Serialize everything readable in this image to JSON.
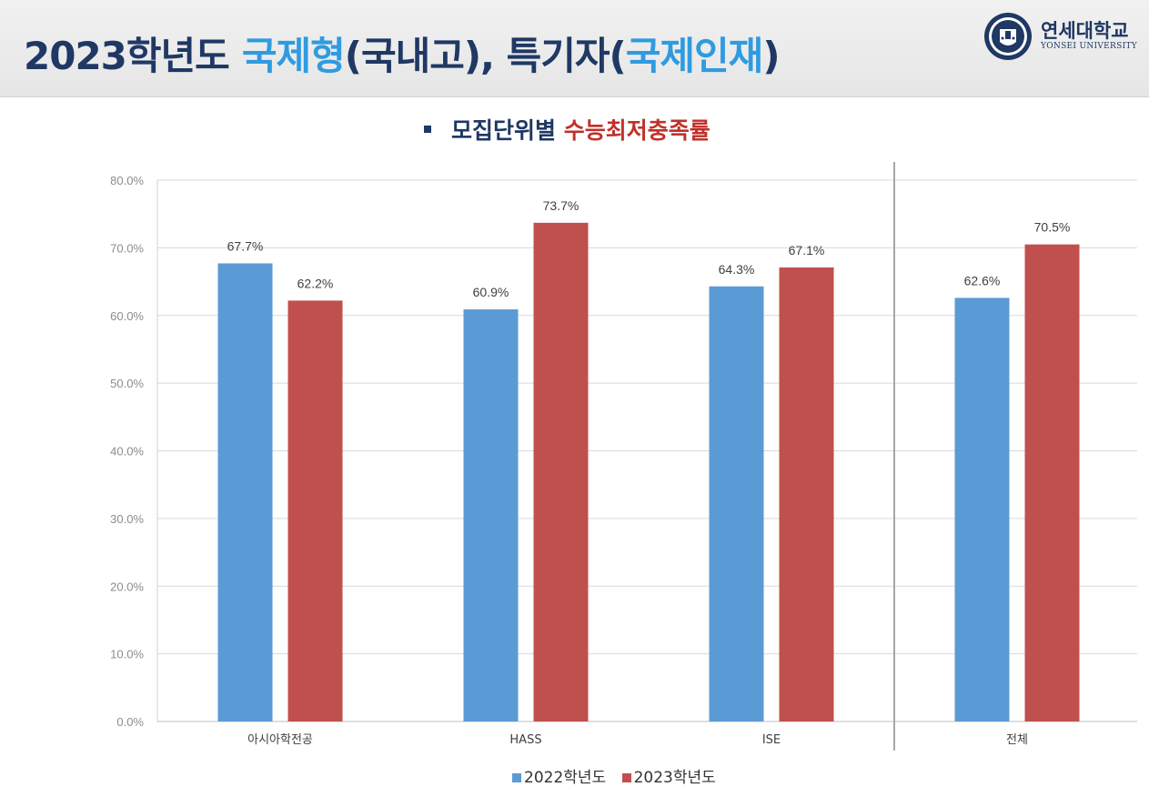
{
  "header": {
    "title_main": "2023학년도",
    "title_accent": "국제형",
    "title_part2": "(국내고), 특기자(",
    "title_accent2": "국제인재",
    "title_part3": ")",
    "logo_ko": "연세대학교",
    "logo_en": "YONSEI UNIVERSITY"
  },
  "subtitle": {
    "prefix": "모집단위별",
    "highlight": "수능최저충족률"
  },
  "colors": {
    "series_2022": "#5b9bd5",
    "series_2023": "#c0504d",
    "title_navy": "#1f3864",
    "title_blue": "#2f9be0"
  },
  "chart_data": {
    "type": "bar",
    "categories": [
      "아시아학전공",
      "HASS",
      "ISE",
      "전체"
    ],
    "series": [
      {
        "name": "2022학년도",
        "values": [
          67.7,
          60.9,
          64.3,
          62.6
        ]
      },
      {
        "name": "2023학년도",
        "values": [
          62.2,
          73.7,
          67.1,
          70.5
        ]
      }
    ],
    "data_labels": [
      [
        "67.7%",
        "60.9%",
        "64.3%",
        "62.6%"
      ],
      [
        "62.2%",
        "73.7%",
        "67.1%",
        "70.5%"
      ]
    ],
    "yticks": [
      "0.0%",
      "10.0%",
      "20.0%",
      "30.0%",
      "40.0%",
      "50.0%",
      "60.0%",
      "70.0%",
      "80.0%"
    ],
    "ylim": [
      0,
      80
    ],
    "grid": true,
    "separator_before_category": "전체",
    "legend_position": "bottom"
  }
}
